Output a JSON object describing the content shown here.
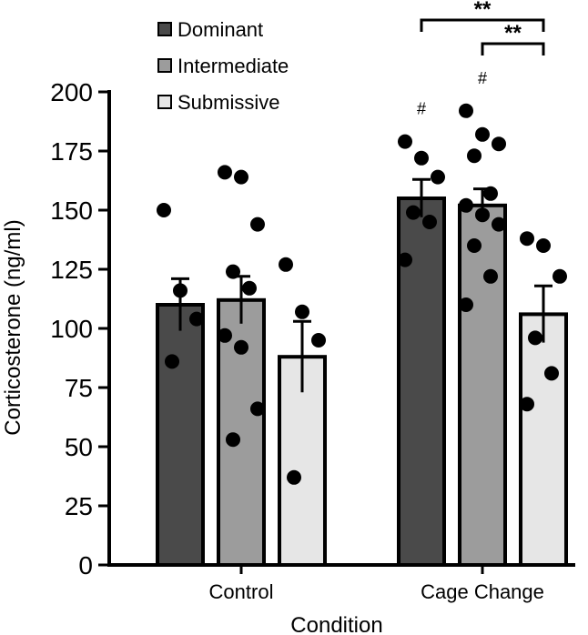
{
  "chart_data": {
    "type": "bar",
    "title": "",
    "xlabel": "Condition",
    "ylabel": "Corticosterone (ng/ml)",
    "ylim": [
      0,
      200
    ],
    "yticks": [
      "0",
      "25",
      "50",
      "75",
      "100",
      "125",
      "150",
      "175",
      "200"
    ],
    "categories": [
      "Control",
      "Cage Change"
    ],
    "legend_position": "top-left",
    "series": [
      {
        "name": "Dominant",
        "color": "#4a4a4a",
        "values": [
          110,
          155
        ],
        "errors": [
          11,
          8
        ],
        "points": [
          [
            150,
            116,
            104,
            86
          ],
          [
            179,
            172,
            164,
            149,
            145,
            129
          ]
        ]
      },
      {
        "name": "Intermediate",
        "color": "#9c9c9c",
        "values": [
          112,
          152
        ],
        "errors": [
          10,
          7
        ],
        "points": [
          [
            166,
            164,
            144,
            124,
            117,
            97,
            92,
            66,
            53
          ],
          [
            192,
            182,
            178,
            173,
            157,
            152,
            148,
            144,
            135,
            122,
            110
          ]
        ]
      },
      {
        "name": "Submissive",
        "color": "#e6e6e6",
        "values": [
          88,
          106
        ],
        "errors": [
          15,
          12
        ],
        "points": [
          [
            127,
            107,
            95,
            37
          ],
          [
            138,
            135,
            122,
            96,
            81,
            68
          ]
        ]
      }
    ],
    "hash_marks": [
      {
        "series": "Dominant",
        "category": "Cage Change",
        "text": "#"
      },
      {
        "series": "Intermediate",
        "category": "Cage Change",
        "text": "#"
      }
    ],
    "significance": [
      {
        "from_series": "Dominant",
        "to_series": "Submissive",
        "category": "Cage Change",
        "text": "**"
      },
      {
        "from_series": "Intermediate",
        "to_series": "Submissive",
        "category": "Cage Change",
        "text": "**"
      }
    ]
  }
}
